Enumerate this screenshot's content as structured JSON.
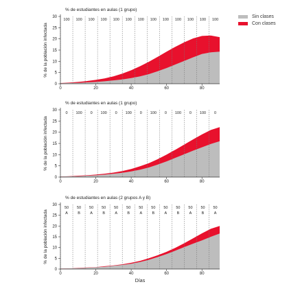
{
  "legend": {
    "sin_clases": {
      "label": "Sin clases",
      "color": "#bdbdbd"
    },
    "con_clases": {
      "label": "Con clases",
      "color": "#e8112d"
    }
  },
  "xlabel": "Días",
  "chart_data": [
    {
      "type": "area",
      "title": "% de estudiantes en aulas (1 grupo)",
      "ylabel": "% de la población infectada",
      "xlim": [
        0,
        90
      ],
      "ylim": [
        0,
        30
      ],
      "xticks": [
        0,
        20,
        40,
        60,
        80
      ],
      "yticks": [
        0,
        5,
        10,
        15,
        20,
        25,
        30
      ],
      "schedule_x": [
        0,
        7,
        14,
        21,
        28,
        35,
        42,
        49,
        56,
        63,
        70,
        77,
        84,
        91
      ],
      "schedule_labels": [
        [
          "100"
        ],
        [
          "100"
        ],
        [
          "100"
        ],
        [
          "100"
        ],
        [
          "100"
        ],
        [
          "100"
        ],
        [
          "100"
        ],
        [
          "100"
        ],
        [
          "100"
        ],
        [
          "100"
        ],
        [
          "100"
        ],
        [
          "100"
        ],
        [
          "100"
        ]
      ],
      "x": [
        0,
        5,
        10,
        15,
        20,
        25,
        30,
        35,
        40,
        45,
        50,
        55,
        60,
        65,
        70,
        75,
        80,
        85,
        90
      ],
      "series": [
        {
          "name": "Sin clases",
          "values": [
            0.2,
            0.3,
            0.4,
            0.6,
            0.8,
            1.1,
            1.5,
            1.9,
            2.5,
            3.3,
            4.3,
            5.6,
            7.0,
            8.6,
            10.2,
            11.8,
            13.3,
            14.0,
            14.3
          ]
        },
        {
          "name": "Con clases",
          "values": [
            0.3,
            0.5,
            0.8,
            1.2,
            1.7,
            2.4,
            3.3,
            4.5,
            6.0,
            7.8,
            9.8,
            12.0,
            14.3,
            16.5,
            18.5,
            20.2,
            21.3,
            21.5,
            20.8
          ]
        }
      ]
    },
    {
      "type": "area",
      "title": "% de estudiantes en aulas (1 grupo)",
      "ylabel": "% de la población infectada",
      "xlim": [
        0,
        90
      ],
      "ylim": [
        0,
        30
      ],
      "xticks": [
        0,
        20,
        40,
        60,
        80
      ],
      "yticks": [
        0,
        5,
        10,
        15,
        20,
        25,
        30
      ],
      "schedule_x": [
        0,
        7,
        14,
        21,
        28,
        35,
        42,
        49,
        56,
        63,
        70,
        77,
        84,
        91
      ],
      "schedule_labels": [
        [
          "0"
        ],
        [
          "100"
        ],
        [
          "0"
        ],
        [
          "100"
        ],
        [
          "0"
        ],
        [
          "100"
        ],
        [
          "0"
        ],
        [
          "100"
        ],
        [
          "0"
        ],
        [
          "100"
        ],
        [
          "0"
        ],
        [
          "100"
        ],
        [
          "0"
        ]
      ],
      "x": [
        0,
        5,
        10,
        15,
        20,
        25,
        30,
        35,
        40,
        45,
        50,
        55,
        60,
        65,
        70,
        75,
        80,
        85,
        90
      ],
      "series": [
        {
          "name": "Sin clases",
          "values": [
            0.2,
            0.3,
            0.4,
            0.6,
            0.8,
            1.1,
            1.5,
            1.9,
            2.5,
            3.3,
            4.3,
            5.6,
            7.0,
            8.6,
            10.2,
            11.8,
            13.3,
            14.8,
            16.0
          ]
        },
        {
          "name": "Con clases",
          "values": [
            0.2,
            0.4,
            0.6,
            0.8,
            1.1,
            1.5,
            2.0,
            2.7,
            3.6,
            4.8,
            6.2,
            8.0,
            10.0,
            12.2,
            14.5,
            16.8,
            19.0,
            21.0,
            22.3
          ]
        }
      ]
    },
    {
      "type": "area",
      "title": "% de estudiantes en aulas (2 grupos A y B)",
      "ylabel": "% de la población infectada",
      "xlabel": "Días",
      "xlim": [
        0,
        90
      ],
      "ylim": [
        0,
        30
      ],
      "xticks": [
        0,
        20,
        40,
        60,
        80
      ],
      "yticks": [
        0,
        5,
        10,
        15,
        20,
        25,
        30
      ],
      "schedule_x": [
        0,
        7,
        14,
        21,
        28,
        35,
        42,
        49,
        56,
        63,
        70,
        77,
        84,
        91
      ],
      "schedule_labels": [
        [
          "50",
          "A"
        ],
        [
          "50",
          "B"
        ],
        [
          "50",
          "A"
        ],
        [
          "50",
          "B"
        ],
        [
          "50",
          "A"
        ],
        [
          "50",
          "B"
        ],
        [
          "50",
          "A"
        ],
        [
          "50",
          "B"
        ],
        [
          "50",
          "A"
        ],
        [
          "50",
          "B"
        ],
        [
          "50",
          "A"
        ],
        [
          "50",
          "B"
        ],
        [
          "50",
          "A"
        ]
      ],
      "x": [
        0,
        5,
        10,
        15,
        20,
        25,
        30,
        35,
        40,
        45,
        50,
        55,
        60,
        65,
        70,
        75,
        80,
        85,
        90
      ],
      "series": [
        {
          "name": "Sin clases",
          "values": [
            0.2,
            0.3,
            0.4,
            0.6,
            0.8,
            1.1,
            1.5,
            1.9,
            2.5,
            3.3,
            4.3,
            5.6,
            7.0,
            8.6,
            10.2,
            11.8,
            13.3,
            15.0,
            16.5
          ]
        },
        {
          "name": "Con clases",
          "values": [
            0.2,
            0.3,
            0.5,
            0.7,
            0.9,
            1.3,
            1.7,
            2.2,
            2.9,
            3.8,
            5.0,
            6.4,
            8.0,
            9.9,
            12.0,
            14.3,
            16.6,
            18.7,
            20.0
          ]
        }
      ]
    }
  ]
}
